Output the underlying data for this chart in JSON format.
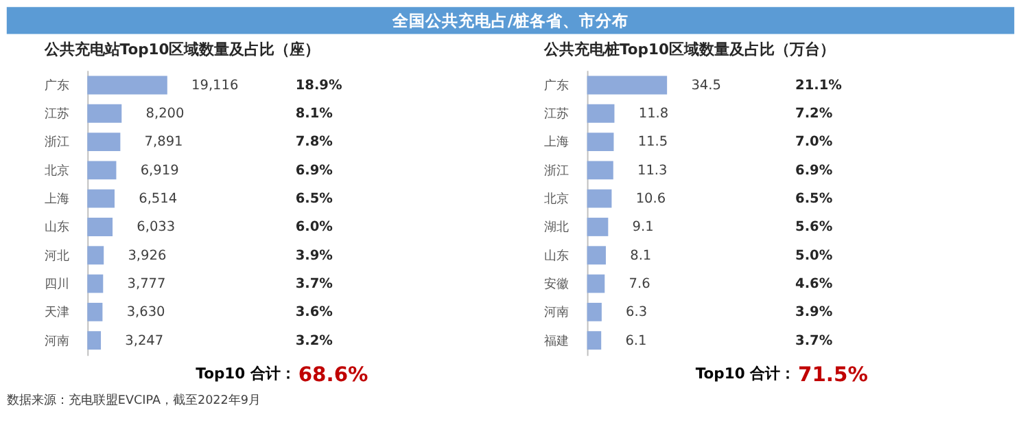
{
  "chart_data": [
    {
      "type": "bar",
      "orientation": "horizontal",
      "title": "公共充电站Top10区域数量及占比（座）",
      "categories": [
        "广东",
        "江苏",
        "浙江",
        "北京",
        "上海",
        "山东",
        "河北",
        "四川",
        "天津",
        "河南"
      ],
      "values": [
        19116,
        8200,
        7891,
        6919,
        6514,
        6033,
        3926,
        3777,
        3630,
        3247
      ],
      "value_labels": [
        "19,116",
        "8,200",
        "7,891",
        "6,919",
        "6,514",
        "6,033",
        "3,926",
        "3,777",
        "3,630",
        "3,247"
      ],
      "color": "#8eaadb",
      "grid": false,
      "annotations": [
        "18.9%",
        "8.1%",
        "7.8%",
        "6.9%",
        "6.5%",
        "6.0%",
        "3.9%",
        "3.7%",
        "3.6%",
        "3.2%",
        "Top10 合计：",
        "68.6%",
        "全国公共充电占/桩各省、市分布",
        "数据来源：充电联盟EVCIPA，截至2022年9月"
      ]
    },
    {
      "type": "bar",
      "orientation": "horizontal",
      "title": "公共充电桩Top10区域数量及占比（万台）",
      "categories": [
        "广东",
        "江苏",
        "上海",
        "浙江",
        "北京",
        "湖北",
        "山东",
        "安徽",
        "河南",
        "福建"
      ],
      "values": [
        34.5,
        11.8,
        11.5,
        11.3,
        10.6,
        9.1,
        8.1,
        7.6,
        6.3,
        6.1
      ],
      "data_labels": true,
      "color": "#8eaadb",
      "grid": false,
      "annotations": [
        "21.1%",
        "7.2%",
        "7.0%",
        "6.9%",
        "6.5%",
        "5.6%",
        "5.0%",
        "4.6%",
        "3.9%",
        "3.7%",
        "Top10 合计：",
        "71.5%"
      ]
    }
  ]
}
